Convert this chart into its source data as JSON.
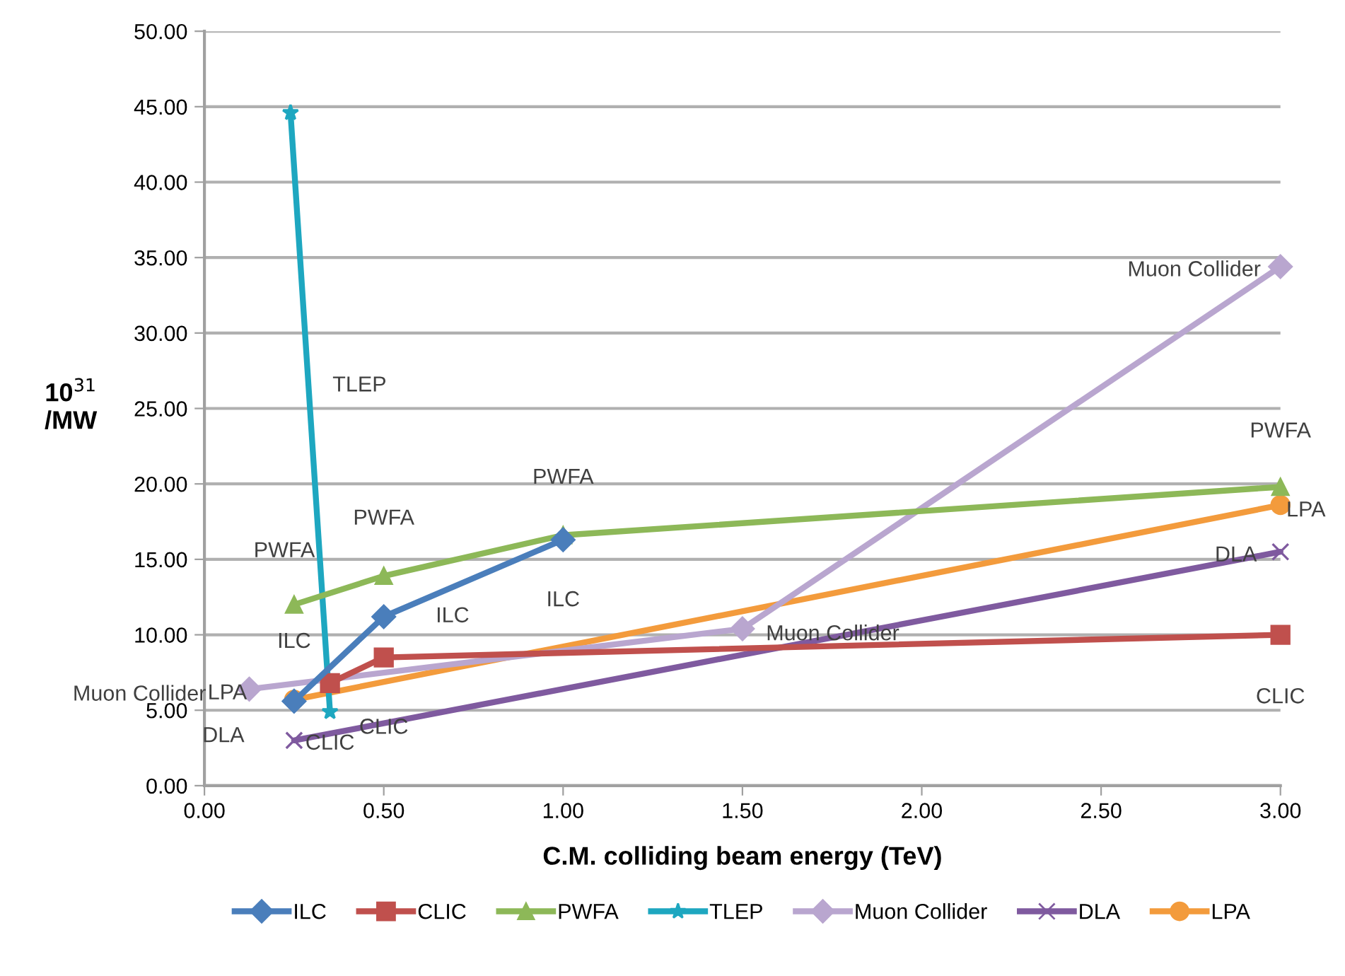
{
  "chart_data": {
    "type": "line",
    "xlabel": "C.M. colliding beam energy (TeV)",
    "ylabel": "10$^{31}$\n/MW",
    "xlim": [
      0,
      3
    ],
    "xticks": [
      {
        "value": 0,
        "label": "0.00"
      },
      {
        "value": 0.5,
        "label": "0.50"
      },
      {
        "value": 1,
        "label": "1.00"
      },
      {
        "value": 1.5,
        "label": "1.50"
      },
      {
        "value": 2,
        "label": "2.00"
      },
      {
        "value": 2.5,
        "label": "2.50"
      },
      {
        "value": 3,
        "label": "3.00"
      }
    ],
    "ylim": [
      0,
      50
    ],
    "yticks": [
      {
        "value": 0,
        "label": "0.00"
      },
      {
        "value": 5,
        "label": "5.00"
      },
      {
        "value": 10,
        "label": "10.00"
      },
      {
        "value": 15,
        "label": "15.00"
      },
      {
        "value": 20,
        "label": "20.00"
      },
      {
        "value": 25,
        "label": "25.00"
      },
      {
        "value": 30,
        "label": "30.00"
      },
      {
        "value": 35,
        "label": "35.00"
      },
      {
        "value": 40,
        "label": "40.00"
      },
      {
        "value": 45,
        "label": "45.00"
      },
      {
        "value": 50,
        "label": "50.00"
      }
    ],
    "grid": "y",
    "legend": "bottom",
    "line_style": "solid",
    "series": [
      {
        "name": "ILC",
        "color": "#4a7ebb",
        "marker": "diamond",
        "x": [
          0.25,
          0.5,
          1.0
        ],
        "values": [
          5.6,
          11.2,
          16.3
        ]
      },
      {
        "name": "CLIC",
        "color": "#c0504d",
        "marker": "square",
        "x": [
          0.35,
          0.5,
          3.0
        ],
        "values": [
          6.8,
          8.5,
          10.0
        ]
      },
      {
        "name": "PWFA",
        "color": "#8db858",
        "marker": "triangle",
        "x": [
          0.25,
          0.5,
          1.0,
          3.0
        ],
        "values": [
          12.0,
          13.9,
          16.6,
          19.8
        ]
      },
      {
        "name": "TLEP",
        "color": "#1ea7c0",
        "marker": "star",
        "x": [
          0.24,
          0.35
        ],
        "values": [
          44.6,
          4.9
        ]
      },
      {
        "name": "Muon Collider",
        "color": "#b9a6cf",
        "marker": "diamond",
        "x": [
          0.125,
          1.5,
          3.0
        ],
        "values": [
          6.4,
          10.4,
          34.4
        ]
      },
      {
        "name": "DLA",
        "color": "#7f5a9f",
        "marker": "cross",
        "x": [
          0.25,
          3.0
        ],
        "values": [
          3.0,
          15.5
        ]
      },
      {
        "name": "LPA",
        "color": "#f39b3c",
        "marker": "circle",
        "x": [
          0.25,
          3.0
        ],
        "values": [
          5.7,
          18.6
        ]
      }
    ],
    "annotations": [
      {
        "text": "TLEP",
        "x": 0.29,
        "y": 26.5
      },
      {
        "text": "Muon Collider",
        "x": 3.0,
        "y": 34.4
      },
      {
        "text": "Muon Collider",
        "x": 1.5,
        "y": 10.4
      },
      {
        "text": "Muon Collider",
        "x": 0.125,
        "y": 6.4
      },
      {
        "text": "PWFA",
        "x": 0.25,
        "y": 12.0
      },
      {
        "text": "PWFA",
        "x": 0.5,
        "y": 13.9
      },
      {
        "text": "PWFA",
        "x": 1.0,
        "y": 16.6
      },
      {
        "text": "PWFA",
        "x": 3.0,
        "y": 19.8
      },
      {
        "text": "ILC",
        "x": 0.25,
        "y": 5.6
      },
      {
        "text": "ILC",
        "x": 0.5,
        "y": 11.2
      },
      {
        "text": "ILC",
        "x": 1.0,
        "y": 16.3
      },
      {
        "text": "CLIC",
        "x": 0.5,
        "y": 8.5
      },
      {
        "text": "CLIC",
        "x": 0.35,
        "y": 6.8
      },
      {
        "text": "CLIC",
        "x": 3.0,
        "y": 10.0
      },
      {
        "text": "LPA",
        "x": 0.25,
        "y": 5.7
      },
      {
        "text": "LPA",
        "x": 3.0,
        "y": 18.6
      },
      {
        "text": "DLA",
        "x": 0.25,
        "y": 3.0
      },
      {
        "text": "DLA",
        "x": 3.0,
        "y": 15.5
      }
    ]
  }
}
